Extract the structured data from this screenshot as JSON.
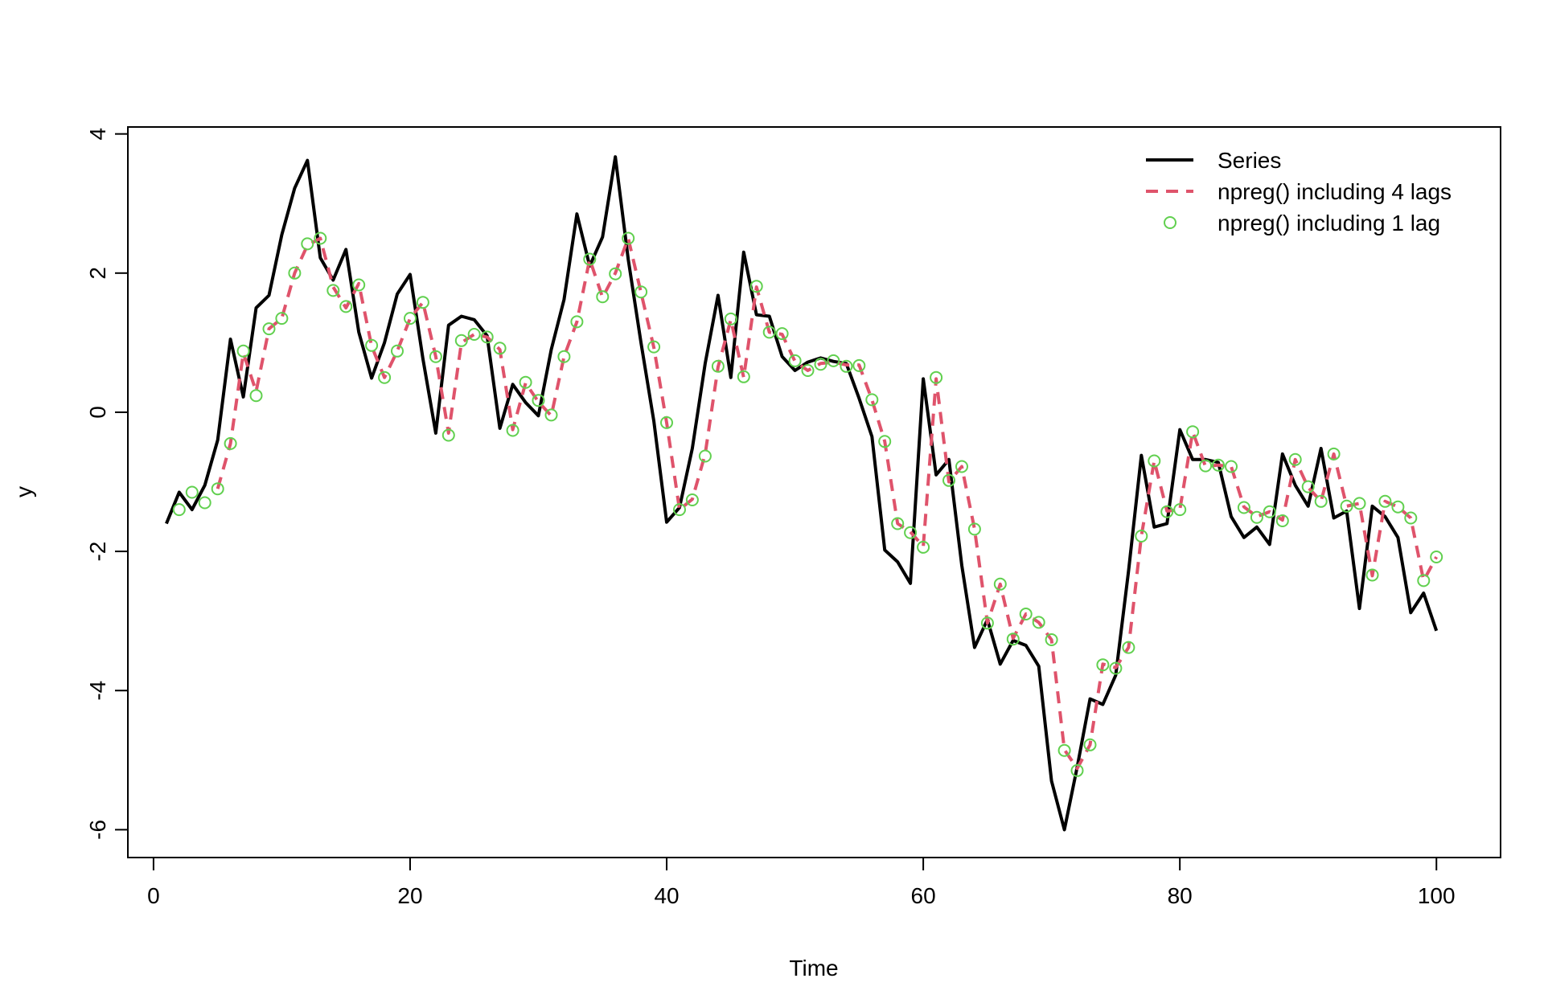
{
  "chart_data": {
    "type": "line",
    "title": "",
    "xlabel": "Time",
    "ylabel": "y",
    "xlim": [
      -2,
      105
    ],
    "ylim": [
      -6.4,
      4.1
    ],
    "xticks": [
      0,
      20,
      40,
      60,
      80,
      100
    ],
    "yticks": [
      -6,
      -4,
      -2,
      0,
      2,
      4
    ],
    "grid": false,
    "legend_position": "top-right",
    "series": [
      {
        "name": "Series",
        "style": "solid-line",
        "color": "#000000",
        "x": [
          1,
          2,
          3,
          4,
          5,
          6,
          7,
          8,
          9,
          10,
          11,
          12,
          13,
          14,
          15,
          16,
          17,
          18,
          19,
          20,
          21,
          22,
          23,
          24,
          25,
          26,
          27,
          28,
          29,
          30,
          31,
          32,
          33,
          34,
          35,
          36,
          37,
          38,
          39,
          40,
          41,
          42,
          43,
          44,
          45,
          46,
          47,
          48,
          49,
          50,
          51,
          52,
          53,
          54,
          55,
          56,
          57,
          58,
          59,
          60,
          61,
          62,
          63,
          64,
          65,
          66,
          67,
          68,
          69,
          70,
          71,
          72,
          73,
          74,
          75,
          76,
          77,
          78,
          79,
          80,
          81,
          82,
          83,
          84,
          85,
          86,
          87,
          88,
          89,
          90,
          91,
          92,
          93,
          94,
          95,
          96,
          97,
          98,
          99,
          100
        ],
        "y": [
          -1.6,
          -1.15,
          -1.4,
          -1.05,
          -0.4,
          1.05,
          0.22,
          1.5,
          1.68,
          2.55,
          3.22,
          3.62,
          2.22,
          1.9,
          2.34,
          1.15,
          0.49,
          1.0,
          1.7,
          1.98,
          0.77,
          -0.3,
          1.25,
          1.38,
          1.33,
          1.1,
          -0.23,
          0.4,
          0.14,
          -0.05,
          0.9,
          1.62,
          2.85,
          2.1,
          2.52,
          3.67,
          2.2,
          1.0,
          -0.13,
          -1.58,
          -1.37,
          -0.52,
          0.7,
          1.68,
          0.5,
          2.3,
          1.4,
          1.38,
          0.8,
          0.6,
          0.72,
          0.78,
          0.73,
          0.7,
          0.2,
          -0.35,
          -1.98,
          -2.15,
          -2.46,
          0.48,
          -0.9,
          -0.68,
          -2.2,
          -3.38,
          -2.98,
          -3.62,
          -3.28,
          -3.35,
          -3.65,
          -5.3,
          -6.0,
          -5.1,
          -4.12,
          -4.2,
          -3.78,
          -2.28,
          -0.62,
          -1.65,
          -1.6,
          -0.25,
          -0.68,
          -0.68,
          -0.72,
          -1.5,
          -1.8,
          -1.65,
          -1.9,
          -0.6,
          -1.05,
          -1.35,
          -0.52,
          -1.52,
          -1.42,
          -2.82,
          -1.35,
          -1.5,
          -1.8,
          -2.88,
          -2.6,
          -3.14
        ]
      },
      {
        "name": "npreg() including 4 lags",
        "style": "dashed-line",
        "color": "#DF536B",
        "x": [
          5,
          6,
          7,
          8,
          9,
          10,
          11,
          12,
          13,
          14,
          15,
          16,
          17,
          18,
          19,
          20,
          21,
          22,
          23,
          24,
          25,
          26,
          27,
          28,
          29,
          30,
          31,
          32,
          33,
          34,
          35,
          36,
          37,
          38,
          39,
          40,
          41,
          42,
          43,
          44,
          45,
          46,
          47,
          48,
          49,
          50,
          51,
          52,
          53,
          54,
          55,
          56,
          57,
          58,
          59,
          60,
          61,
          62,
          63,
          64,
          65,
          66,
          67,
          68,
          69,
          70,
          71,
          72,
          73,
          74,
          75,
          76,
          77,
          78,
          79,
          80,
          81,
          82,
          83,
          84,
          85,
          86,
          87,
          88,
          89,
          90,
          91,
          92,
          93,
          94,
          95,
          96,
          97,
          98,
          99,
          100
        ],
        "y": [
          -1.1,
          -0.45,
          0.85,
          0.3,
          1.2,
          1.35,
          2.0,
          2.4,
          2.5,
          1.8,
          1.5,
          1.85,
          0.95,
          0.5,
          0.88,
          1.35,
          1.58,
          0.8,
          -0.3,
          1.0,
          1.12,
          1.08,
          0.9,
          -0.25,
          0.42,
          0.15,
          -0.05,
          0.8,
          1.3,
          2.2,
          1.65,
          2.0,
          2.5,
          1.72,
          0.93,
          -0.15,
          -1.4,
          -1.25,
          -0.6,
          0.65,
          1.33,
          0.5,
          1.8,
          1.15,
          1.12,
          0.73,
          0.6,
          0.7,
          0.72,
          0.68,
          0.68,
          0.18,
          -0.42,
          -1.6,
          -1.72,
          -1.93,
          0.48,
          -1.0,
          -0.78,
          -1.68,
          -3.03,
          -2.47,
          -3.25,
          -2.9,
          -3.02,
          -3.27,
          -4.85,
          -5.12,
          -4.78,
          -3.62,
          -3.67,
          -3.38,
          -1.78,
          -0.7,
          -1.42,
          -1.4,
          -0.28,
          -0.78,
          -0.76,
          -0.78,
          -1.36,
          -1.5,
          -1.43,
          -1.55,
          -0.68,
          -1.08,
          -1.28,
          -0.6,
          -1.35,
          -1.31,
          -2.35,
          -1.28,
          -1.36,
          -1.52,
          -2.42,
          -2.08
        ]
      },
      {
        "name": "npreg() including 1 lag",
        "style": "open-circles",
        "color": "#61D04F",
        "x": [
          2,
          3,
          4,
          5,
          6,
          7,
          8,
          9,
          10,
          11,
          12,
          13,
          14,
          15,
          16,
          17,
          18,
          19,
          20,
          21,
          22,
          23,
          24,
          25,
          26,
          27,
          28,
          29,
          30,
          31,
          32,
          33,
          34,
          35,
          36,
          37,
          38,
          39,
          40,
          41,
          42,
          43,
          44,
          45,
          46,
          47,
          48,
          49,
          50,
          51,
          52,
          53,
          54,
          55,
          56,
          57,
          58,
          59,
          60,
          61,
          62,
          63,
          64,
          65,
          66,
          67,
          68,
          69,
          70,
          71,
          72,
          73,
          74,
          75,
          76,
          77,
          78,
          79,
          80,
          81,
          82,
          83,
          84,
          85,
          86,
          87,
          88,
          89,
          90,
          91,
          92,
          93,
          94,
          95,
          96,
          97,
          98,
          99,
          100
        ],
        "y": [
          -1.4,
          -1.15,
          -1.3,
          -1.1,
          -0.45,
          0.88,
          0.24,
          1.2,
          1.35,
          2.0,
          2.42,
          2.5,
          1.75,
          1.52,
          1.83,
          0.96,
          0.5,
          0.88,
          1.35,
          1.58,
          0.8,
          -0.33,
          1.03,
          1.12,
          1.08,
          0.92,
          -0.26,
          0.43,
          0.17,
          -0.04,
          0.8,
          1.3,
          2.2,
          1.66,
          1.99,
          2.5,
          1.73,
          0.94,
          -0.15,
          -1.4,
          -1.26,
          -0.63,
          0.66,
          1.34,
          0.51,
          1.81,
          1.15,
          1.13,
          0.74,
          0.6,
          0.69,
          0.74,
          0.66,
          0.67,
          0.18,
          -0.42,
          -1.6,
          -1.73,
          -1.94,
          0.5,
          -0.98,
          -0.78,
          -1.68,
          -3.03,
          -2.47,
          -3.26,
          -2.9,
          -3.02,
          -3.27,
          -4.86,
          -5.15,
          -4.78,
          -3.63,
          -3.68,
          -3.38,
          -1.78,
          -0.7,
          -1.43,
          -1.4,
          -0.28,
          -0.77,
          -0.76,
          -0.78,
          -1.37,
          -1.51,
          -1.43,
          -1.56,
          -0.68,
          -1.07,
          -1.28,
          -0.6,
          -1.35,
          -1.31,
          -2.34,
          -1.28,
          -1.36,
          -1.52,
          -2.42,
          -2.08
        ]
      }
    ]
  }
}
